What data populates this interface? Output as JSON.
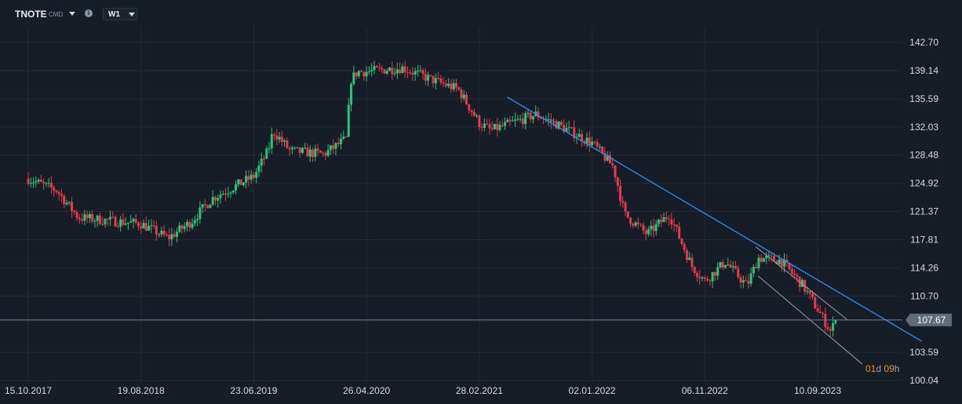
{
  "toolbar": {
    "symbol": "TNOTE",
    "symbol_sub": "CMD",
    "timeframe": "W1",
    "info_glyph": "i"
  },
  "countdown": {
    "days": "01",
    "days_unit": "d",
    "hours": "09",
    "hours_unit": "h"
  },
  "colors": {
    "background": "#161d26",
    "bull": "#2bc27a",
    "bear": "#e6384e",
    "trendline": "#2f8ff0",
    "channel": "#9aa3ad",
    "price_line": "#6f7d8c"
  },
  "chart_data": {
    "type": "candlestick",
    "title": "",
    "xlabel": "",
    "ylabel": "",
    "ylim": [
      100.04,
      144.5
    ],
    "y_ticks": [
      "142.70",
      "139.14",
      "135.59",
      "132.03",
      "128.48",
      "124.92",
      "121.37",
      "117.81",
      "114.26",
      "110.70",
      "107.67",
      "103.59",
      "100.04"
    ],
    "x_ticks": [
      "15.10.2017",
      "19.08.2018",
      "23.06.2019",
      "26.04.2020",
      "28.02.2021",
      "02.01.2022",
      "06.11.2022",
      "10.09.2023"
    ],
    "last_price": "107.67",
    "grid": true,
    "close_anchors": [
      [
        "15.10.2017",
        125.5
      ],
      [
        "01.01.2018",
        124.0
      ],
      [
        "01.03.2018",
        120.6
      ],
      [
        "19.08.2018",
        119.8
      ],
      [
        "01.11.2018",
        118.0
      ],
      [
        "01.01.2019",
        120.0
      ],
      [
        "01.03.2019",
        123.0
      ],
      [
        "23.06.2019",
        125.8
      ],
      [
        "01.08.2019",
        129.0
      ],
      [
        "15.08.2019",
        131.5
      ],
      [
        "01.10.2019",
        129.0
      ],
      [
        "01.01.2020",
        128.6
      ],
      [
        "01.03.2020",
        130.5
      ],
      [
        "15.03.2020",
        138.0
      ],
      [
        "01.04.2020",
        139.0
      ],
      [
        "26.04.2020",
        139.0
      ],
      [
        "01.08.2020",
        139.5
      ],
      [
        "01.11.2020",
        137.8
      ],
      [
        "01.01.2021",
        136.8
      ],
      [
        "28.02.2021",
        132.5
      ],
      [
        "01.04.2021",
        131.6
      ],
      [
        "01.08.2021",
        133.6
      ],
      [
        "01.10.2021",
        132.3
      ],
      [
        "02.01.2022",
        130.0
      ],
      [
        "01.03.2022",
        127.0
      ],
      [
        "01.04.2022",
        121.0
      ],
      [
        "01.06.2022",
        118.5
      ],
      [
        "01.08.2022",
        121.0
      ],
      [
        "01.10.2022",
        114.5
      ],
      [
        "06.11.2022",
        112.6
      ],
      [
        "01.01.2023",
        115.0
      ],
      [
        "01.03.2023",
        112.0
      ],
      [
        "01.04.2023",
        115.5
      ],
      [
        "01.06.2023",
        115.2
      ],
      [
        "01.08.2023",
        112.0
      ],
      [
        "10.09.2023",
        109.0
      ],
      [
        "15.10.2023",
        106.3
      ],
      [
        "01.11.2023",
        107.67
      ]
    ],
    "trendlines": [
      {
        "name": "",
        "points": [
          [
            "15.05.2021",
            135.8
          ],
          [
            "20.06.2024",
            105.0
          ]
        ]
      },
      {
        "name": "",
        "points": [
          [
            "25.03.2023",
            116.9
          ],
          [
            "01.12.2023",
            107.67
          ]
        ]
      },
      {
        "name": "",
        "points": [
          [
            "01.04.2023",
            113.2
          ],
          [
            "10.01.2024",
            102.1
          ]
        ]
      }
    ]
  }
}
